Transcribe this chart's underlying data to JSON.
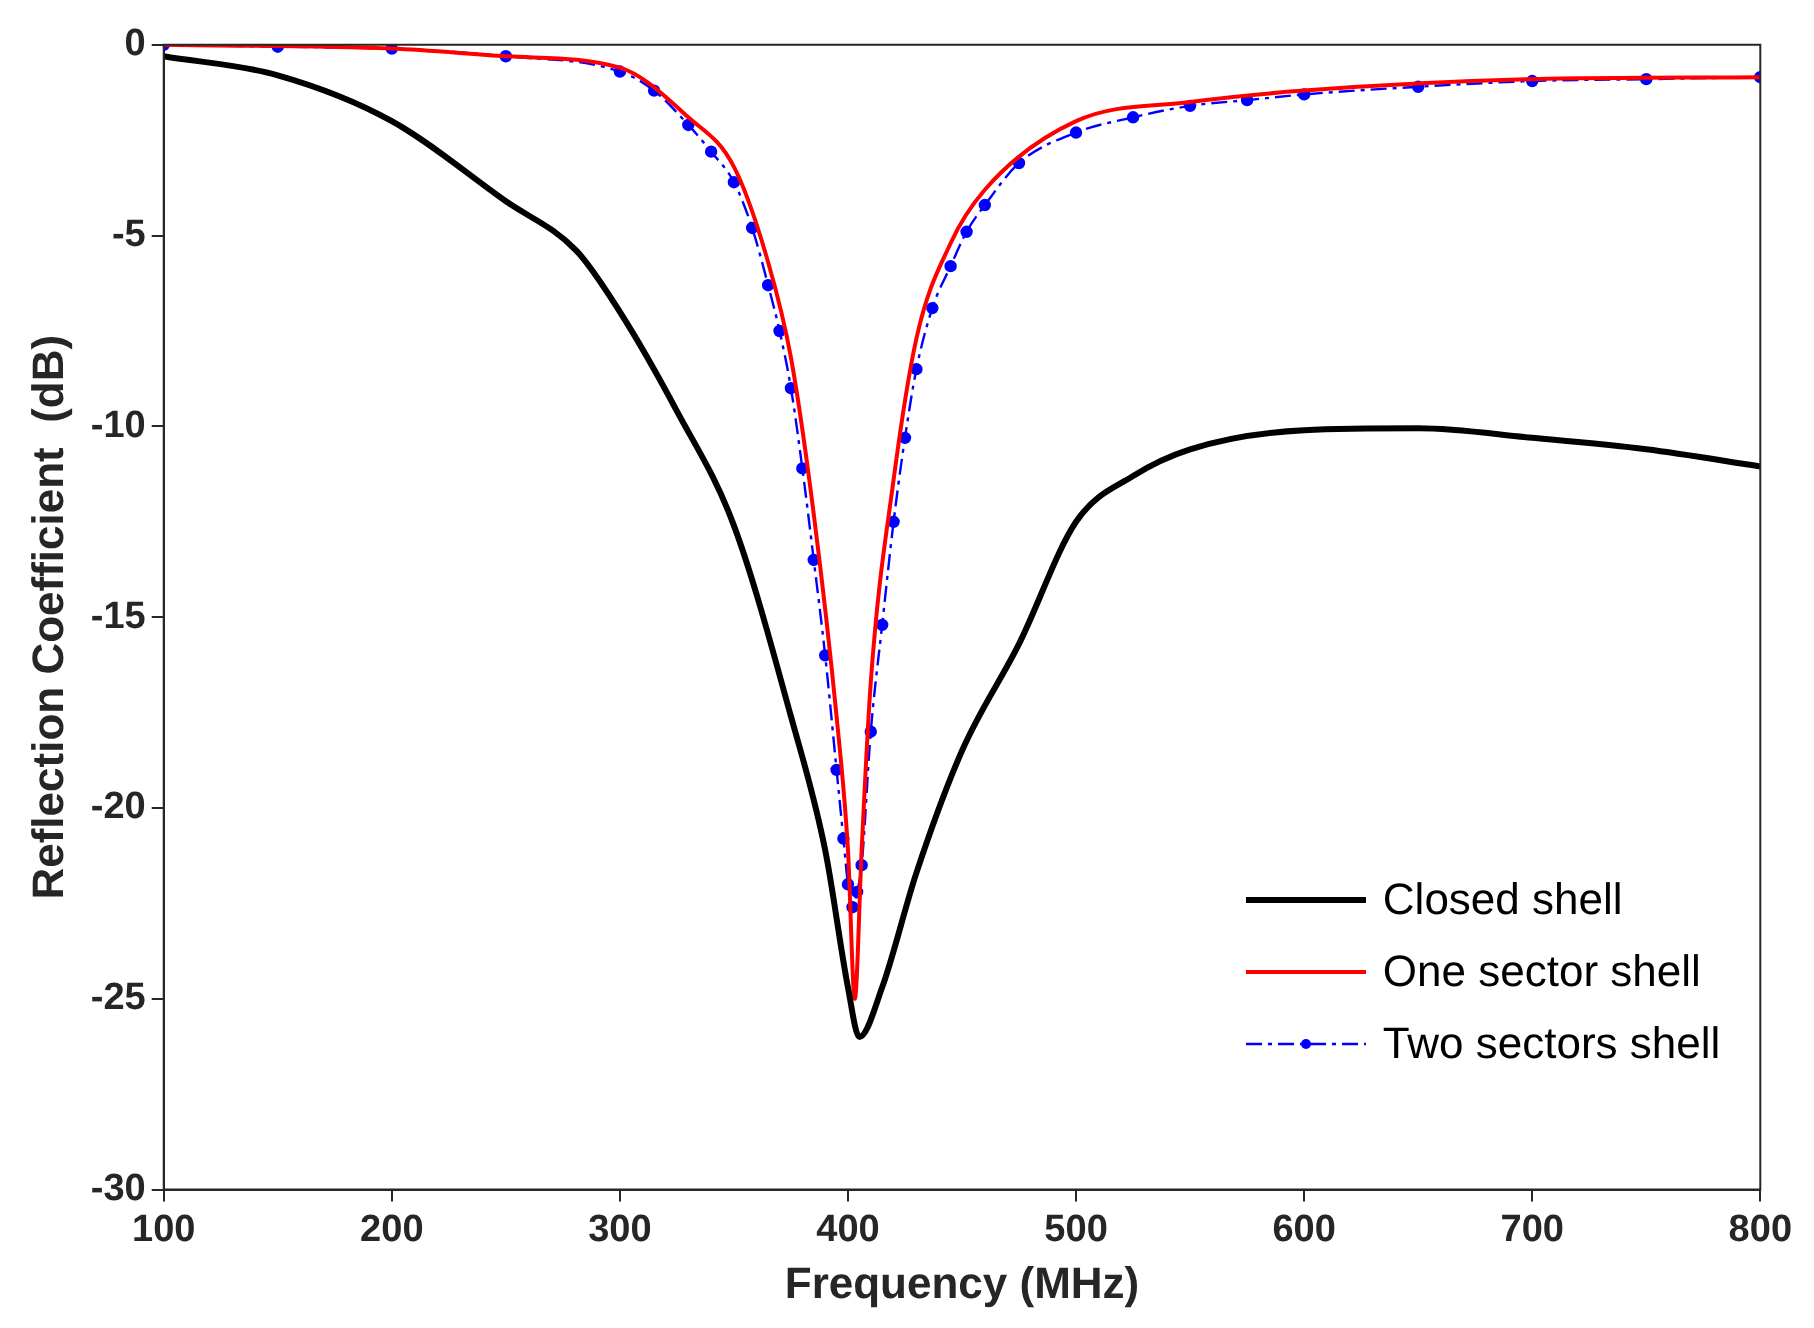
{
  "chart_data": {
    "type": "line",
    "xlabel": "Frequency (MHz)",
    "ylabel": "Reflection Coefficient  (dB)",
    "xlim": [
      100,
      800
    ],
    "ylim": [
      -30,
      0
    ],
    "xticks": [
      100,
      200,
      300,
      400,
      500,
      600,
      700,
      800
    ],
    "yticks": [
      -30,
      -25,
      -20,
      -15,
      -10,
      -5,
      0
    ],
    "grid": false,
    "legend": "bottom right",
    "series": [
      {
        "name": "Closed shell",
        "color": "#000000",
        "marker": "none",
        "line_style": "solid",
        "x": [
          100,
          150,
          200,
          250,
          281,
          300,
          325,
          350,
          375,
          390,
          400,
          405,
          415,
          430,
          450,
          475,
          500,
          525,
          550,
          600,
          650,
          700,
          750,
          800
        ],
        "values": [
          -0.3,
          -0.8,
          -2,
          -4.1,
          -5.4,
          -7,
          -9.6,
          -12.6,
          -17.6,
          -21.1,
          -24.7,
          -26,
          -24.7,
          -21.7,
          -18.5,
          -15.7,
          -12.5,
          -11.3,
          -10.6,
          -10.1,
          -10.05,
          -10.3,
          -10.6,
          -11.05
        ]
      },
      {
        "name": "One sector shell",
        "color": "#ff0000",
        "marker": "none",
        "line_style": "solid",
        "x": [
          100,
          200,
          250,
          300,
          330,
          350,
          365,
          375,
          385,
          395,
          400,
          403,
          406,
          410,
          420,
          430,
          445,
          460,
          500,
          550,
          600,
          700,
          800
        ],
        "values": [
          0,
          -0.1,
          -0.3,
          -0.6,
          -1.9,
          -3.2,
          -5.7,
          -8.2,
          -12.3,
          -17.6,
          -21.1,
          -25,
          -21.1,
          -16.7,
          -11.4,
          -7.7,
          -5.2,
          -3.8,
          -2,
          -1.5,
          -1.2,
          -0.9,
          -0.85
        ]
      },
      {
        "name": "Two sectors shell",
        "color": "#0000ff",
        "marker": "circle",
        "line_style": "dashed",
        "x": [
          100,
          150,
          200,
          250,
          300,
          315,
          330,
          340,
          350,
          358,
          365,
          370,
          375,
          380,
          385,
          390,
          395,
          398,
          400,
          402,
          404,
          406,
          410,
          415,
          420,
          425,
          430,
          437,
          445,
          452,
          460,
          475,
          500,
          525,
          550,
          575,
          600,
          650,
          700,
          750,
          800
        ],
        "values": [
          0,
          -0.05,
          -0.1,
          -0.3,
          -0.7,
          -1.2,
          -2.1,
          -2.8,
          -3.6,
          -4.8,
          -6.3,
          -7.5,
          -9,
          -11.1,
          -13.5,
          -16,
          -19,
          -20.8,
          -22,
          -22.6,
          -22.2,
          -21.5,
          -18,
          -15.2,
          -12.5,
          -10.3,
          -8.5,
          -6.9,
          -5.8,
          -4.9,
          -4.2,
          -3.1,
          -2.3,
          -1.9,
          -1.6,
          -1.45,
          -1.3,
          -1.1,
          -0.95,
          -0.9,
          -0.85
        ]
      }
    ]
  }
}
